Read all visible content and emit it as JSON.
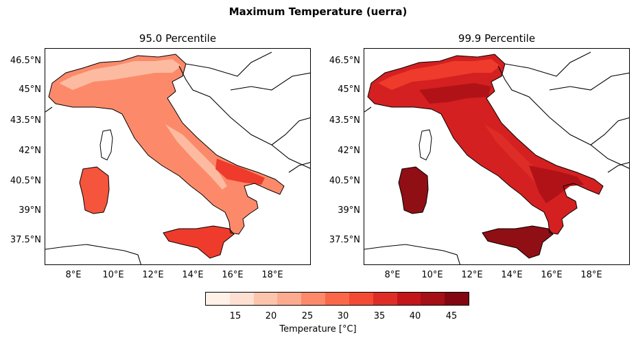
{
  "figure": {
    "suptitle": "Maximum Temperature (uerra)"
  },
  "panels": [
    {
      "title": "95.0 Percentile",
      "fill_levels": [
        "#fc8a6a",
        "#f5553c",
        "#fb6a4a",
        "#fcbba1",
        "#ef3b2c"
      ]
    },
    {
      "title": "99.9 Percentile",
      "fill_levels": [
        "#d42020",
        "#b11218",
        "#de2d26",
        "#ef3b2c",
        "#8f0f15"
      ]
    }
  ],
  "axes": {
    "lat_ticks": [
      "46.5°N",
      "45°N",
      "43.5°N",
      "42°N",
      "40.5°N",
      "39°N",
      "37.5°N"
    ],
    "lon_ticks": [
      "8°E",
      "10°E",
      "12°E",
      "14°E",
      "16°E",
      "18°E"
    ]
  },
  "colorbar": {
    "label": "Temperature [°C]",
    "ticks": [
      "15",
      "20",
      "25",
      "30",
      "35",
      "40",
      "45"
    ],
    "colors": [
      "#fff0e8",
      "#fee0d2",
      "#fcc5ab",
      "#fcab8f",
      "#fc8a6a",
      "#fa6849",
      "#f24a35",
      "#de2d26",
      "#c3161b",
      "#a50f15",
      "#820711"
    ]
  }
}
